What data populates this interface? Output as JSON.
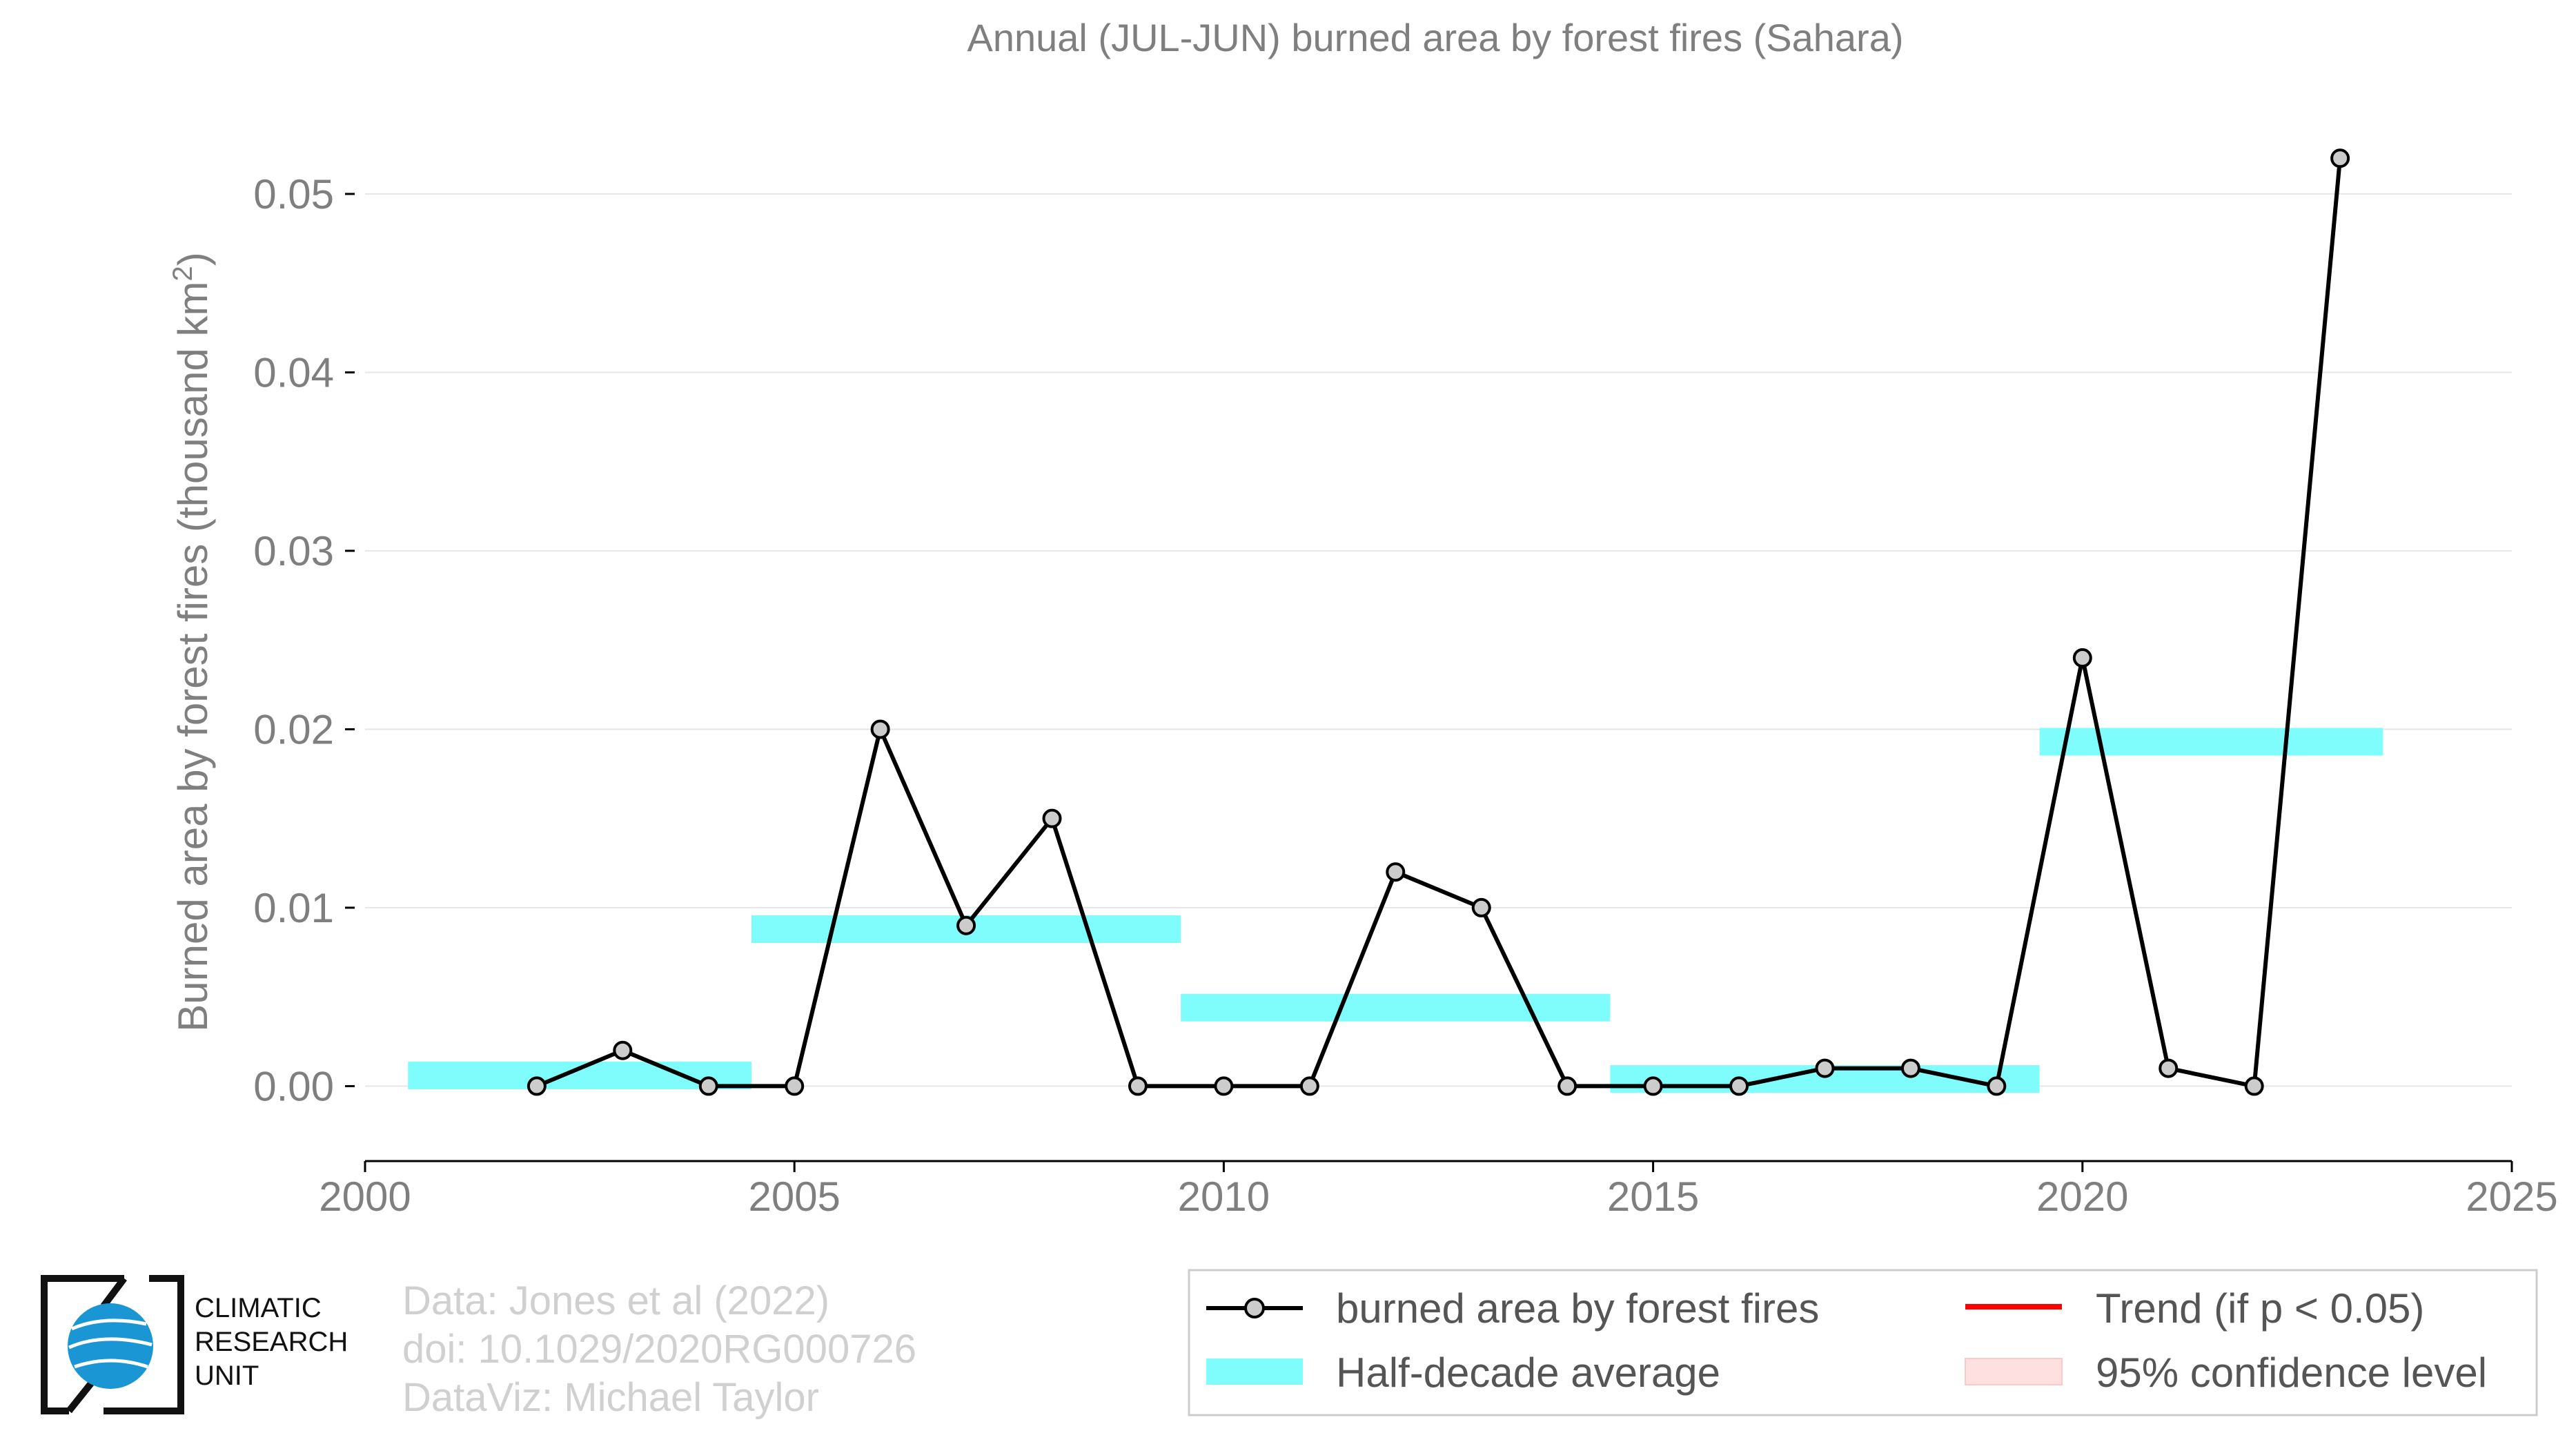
{
  "chart_data": {
    "type": "line",
    "title": "Annual (JUL-JUN) burned area by forest fires (Sahara)",
    "xlabel": "",
    "ylabel": "Burned area by forest fires (thousand km",
    "ylabel_sup": "2",
    "ylabel_tail": ")",
    "xlim": [
      2000,
      2025
    ],
    "ylim": [
      -0.0042,
      0.057
    ],
    "xticks": [
      2000,
      2005,
      2010,
      2015,
      2020,
      2025
    ],
    "xtick_labels": [
      "2000",
      "2005",
      "2010",
      "2015",
      "2020",
      "2025"
    ],
    "yticks": [
      0.0,
      0.01,
      0.02,
      0.03,
      0.04,
      0.05
    ],
    "ytick_labels": [
      "0.00",
      "0.01",
      "0.02",
      "0.03",
      "0.04",
      "0.05"
    ],
    "grid": true,
    "series": [
      {
        "name": "burned area by forest fires",
        "color": "#000000",
        "marker_fill": "#cccccc",
        "x": [
          2002,
          2003,
          2004,
          2005,
          2006,
          2007,
          2008,
          2009,
          2010,
          2011,
          2012,
          2013,
          2014,
          2015,
          2016,
          2017,
          2018,
          2019,
          2020,
          2021,
          2022,
          2023
        ],
        "values": [
          0.0,
          0.002,
          0.0,
          0.0,
          0.02,
          0.009,
          0.015,
          0.0,
          0.0,
          0.0,
          0.012,
          0.01,
          0.0,
          0.0,
          0.0,
          0.001,
          0.001,
          0.0,
          0.024,
          0.001,
          0.0,
          0.052
        ]
      }
    ],
    "half_decade_average": {
      "name": "Half-decade average",
      "color": "#7ffcfc",
      "segments": [
        {
          "x_start": 2000.5,
          "x_end": 2004.5,
          "value": 0.0006
        },
        {
          "x_start": 2004.5,
          "x_end": 2009.5,
          "value": 0.0088
        },
        {
          "x_start": 2009.5,
          "x_end": 2014.5,
          "value": 0.0044
        },
        {
          "x_start": 2014.5,
          "x_end": 2019.5,
          "value": 0.0004
        },
        {
          "x_start": 2019.5,
          "x_end": 2023.5,
          "value": 0.0193
        }
      ]
    },
    "legend": {
      "position": "bottom-right",
      "entries": [
        {
          "label": "burned area by forest fires",
          "kind": "line-marker",
          "color": "#000000"
        },
        {
          "label": "Trend (if p < 0.05)",
          "kind": "line",
          "color": "#ff0000"
        },
        {
          "label": "Half-decade average",
          "kind": "band",
          "color": "#7ffcfc"
        },
        {
          "label": "95% confidence level",
          "kind": "band",
          "color": "#ffe0e0"
        }
      ]
    },
    "credits": [
      "Data: Jones et al (2022)",
      "doi: 10.1029/2020RG000726",
      "DataViz: Michael Taylor"
    ]
  },
  "logo": {
    "lines": [
      "CLIMATIC",
      "RESEARCH",
      "UNIT"
    ],
    "globe_color": "#1a96d4"
  }
}
